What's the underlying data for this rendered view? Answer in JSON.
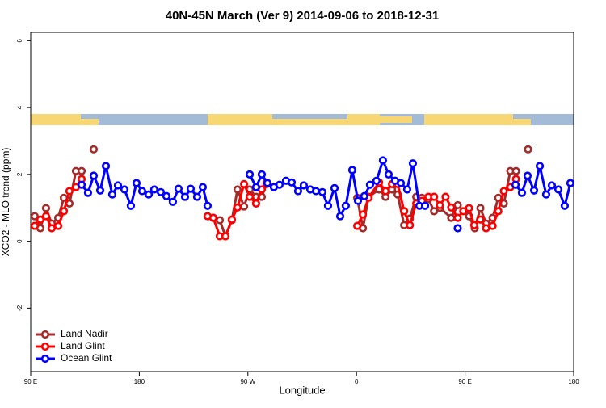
{
  "chart_data": {
    "type": "line",
    "title": "40N-45N March (Ver 9)   2014-09-06 to 2018-12-31",
    "xlabel": "Longitude",
    "ylabel": "XCO2 - MLO trend (ppm)",
    "xlim": [
      90,
      540
    ],
    "ylim": [
      -3.9,
      6.25
    ],
    "xticks": [
      {
        "value": 90,
        "label": "90 E"
      },
      180,
      {
        "value": 270,
        "label": "90 W"
      },
      {
        "value": 360,
        "label": "0"
      },
      {
        "value": 450,
        "label": "90 E"
      },
      {
        "value": 540,
        "label": "180"
      }
    ],
    "yticks": [
      -2,
      0,
      2,
      4,
      6
    ],
    "legend": "bottom-left",
    "series": [
      {
        "name": "Land Nadir",
        "color": "#a52a2a",
        "x": [
          93.3,
          98.0,
          102.7,
          107.4,
          112.8,
          117.5,
          122.1,
          127.5,
          132.2,
          137.0,
          142.2,
          200.0,
          241.3,
          246.7,
          251.4,
          256.7,
          261.4,
          266.8,
          271.5,
          276.8,
          281.5,
          285.5,
          320.0,
          360.6,
          365.3,
          370.0,
          378.7,
          384.1,
          389.4,
          394.1,
          399.5,
          404.2,
          409.5,
          414.2,
          419.6,
          424.3,
          429.1,
          438.5,
          443.9,
          448.0,
          453.3,
          458.0,
          462.7,
          467.4,
          472.8,
          477.5,
          482.1,
          487.5,
          492.2,
          497.0,
          502.2
        ],
        "values": [
          0.75,
          0.39,
          0.99,
          0.53,
          0.7,
          1.3,
          1.13,
          2.1,
          2.1,
          null,
          2.75,
          null,
          0.7,
          0.63,
          0.15,
          0.63,
          1.55,
          1.04,
          1.55,
          1.33,
          1.33,
          1.76,
          null,
          1.3,
          0.39,
          1.33,
          1.55,
          1.33,
          1.55,
          1.4,
          0.48,
          0.68,
          1.33,
          1.3,
          1.26,
          0.9,
          1.0,
          0.7,
          1.08,
          null,
          0.75,
          0.39,
          0.99,
          0.53,
          0.7,
          1.3,
          1.13,
          2.1,
          2.1,
          null,
          2.75
        ]
      },
      {
        "name": "Land Glint",
        "color": "#ff0000",
        "x": [
          93.3,
          98.0,
          102.7,
          107.4,
          112.8,
          117.5,
          122.1,
          127.5,
          132.2,
          200.0,
          236.6,
          241.3,
          246.7,
          251.4,
          256.7,
          261.4,
          266.8,
          271.5,
          276.8,
          281.5,
          285.5,
          320.0,
          360.6,
          365.3,
          370.0,
          378.7,
          384.1,
          389.4,
          394.1,
          399.5,
          404.2,
          409.5,
          414.2,
          419.6,
          424.3,
          429.1,
          433.8,
          438.5,
          443.9,
          448.5,
          453.3,
          457.6,
          462.7,
          467.4,
          472.8,
          477.5,
          482.1,
          487.5,
          492.2
        ],
        "values": [
          0.46,
          0.65,
          0.75,
          0.39,
          0.46,
          0.9,
          1.5,
          1.62,
          1.86,
          null,
          0.75,
          0.7,
          0.15,
          0.15,
          0.65,
          1.01,
          1.71,
          1.33,
          1.13,
          1.55,
          1.71,
          null,
          0.46,
          0.8,
          1.3,
          1.76,
          1.5,
          1.71,
          1.71,
          0.9,
          0.48,
          1.13,
          1.21,
          1.33,
          1.33,
          1.08,
          1.33,
          1.01,
          0.7,
          0.9,
          0.99,
          0.48,
          0.65,
          0.39,
          0.46,
          0.9,
          1.5,
          1.62,
          1.86
        ]
      },
      {
        "name": "Ocean Glint",
        "color": "#0000ff",
        "x": [
          132.2,
          137.5,
          142.2,
          147.6,
          152.3,
          157.6,
          162.3,
          167.7,
          173.0,
          177.7,
          182.4,
          187.8,
          192.4,
          197.8,
          202.5,
          207.8,
          212.5,
          217.9,
          222.6,
          227.9,
          232.6,
          236.6,
          250.0,
          271.5,
          276.8,
          281.5,
          286.2,
          291.5,
          296.2,
          301.6,
          306.3,
          311.6,
          316.3,
          321.7,
          326.4,
          331.7,
          336.4,
          341.8,
          346.5,
          351.1,
          356.5,
          361.2,
          366.5,
          371.2,
          376.6,
          381.9,
          386.6,
          392.0,
          396.7,
          402.0,
          406.7,
          412.1,
          416.8,
          420.0,
          443.9,
          460.0,
          491.8,
          497.1,
          501.8,
          507.2,
          511.9,
          517.2,
          521.9,
          527.3,
          532.6,
          537.3
        ],
        "values": [
          1.69,
          1.45,
          1.96,
          1.52,
          2.25,
          1.4,
          1.67,
          1.55,
          1.06,
          1.74,
          1.5,
          1.4,
          1.55,
          1.47,
          1.35,
          1.18,
          1.57,
          1.33,
          1.57,
          1.33,
          1.62,
          1.06,
          null,
          2.0,
          1.62,
          2.0,
          1.74,
          1.62,
          1.69,
          1.81,
          1.76,
          1.5,
          1.67,
          1.55,
          1.5,
          1.47,
          1.06,
          1.59,
          0.75,
          1.06,
          2.13,
          1.21,
          1.35,
          1.69,
          1.81,
          2.42,
          2.0,
          1.81,
          1.74,
          1.55,
          2.33,
          1.06,
          1.06,
          null,
          0.39,
          null,
          1.69,
          1.45,
          1.96,
          1.52,
          2.25,
          1.4,
          1.67,
          1.55,
          1.06,
          1.74
        ]
      }
    ]
  }
}
